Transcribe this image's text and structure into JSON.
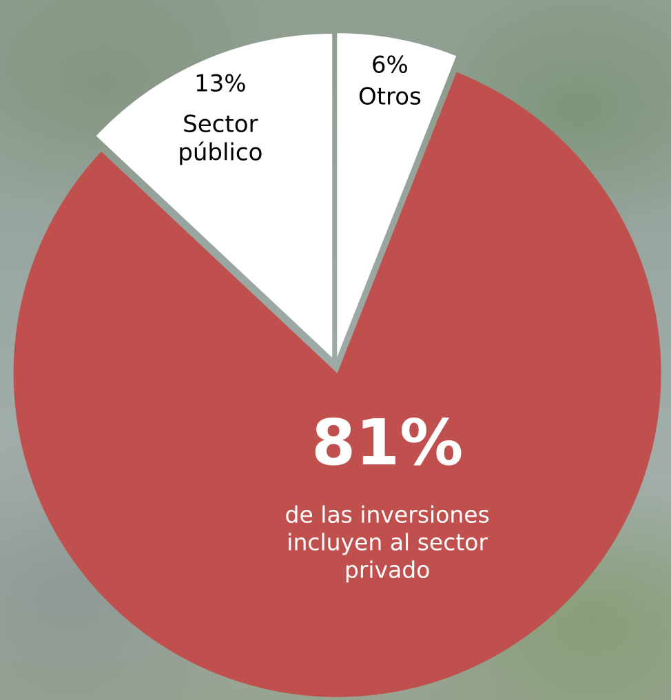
{
  "chart_data": {
    "type": "pie",
    "categories": [
      "de las inversiones incluyen al sector privado",
      "Sector público",
      "Otros"
    ],
    "values": [
      81,
      13,
      6
    ],
    "value_labels": [
      "81%",
      "13%",
      "6%"
    ],
    "colors": [
      "#c0504d",
      "#ffffff",
      "#ffffff"
    ],
    "start_angle": 21.6,
    "direction": "clockwise"
  }
}
